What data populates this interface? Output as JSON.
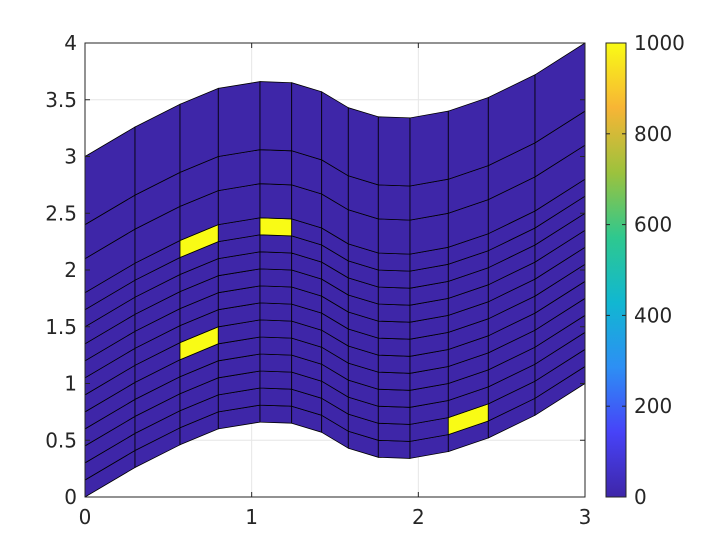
{
  "chart_data": {
    "type": "heatmap",
    "title": "",
    "xlabel": "",
    "ylabel": "",
    "xlim": [
      0,
      3
    ],
    "ylim": [
      0,
      4
    ],
    "grid": true,
    "x_ticks": [
      "0",
      "1",
      "2",
      "3"
    ],
    "y_ticks": [
      "0",
      "0.5",
      "1",
      "1.5",
      "2",
      "2.5",
      "3",
      "3.5",
      "4"
    ],
    "mesh": {
      "x": [
        0,
        0.3,
        0.57,
        0.8,
        1.05,
        1.24,
        1.42,
        1.58,
        1.76,
        1.95,
        2.18,
        2.42,
        2.7,
        3.0
      ],
      "bottom": [
        0,
        0.26,
        0.46,
        0.6,
        0.66,
        0.65,
        0.57,
        0.43,
        0.35,
        0.34,
        0.4,
        0.52,
        0.72,
        1.0
      ],
      "top": [
        3.0,
        3.26,
        3.46,
        3.6,
        3.66,
        3.65,
        3.57,
        3.43,
        3.35,
        3.34,
        3.4,
        3.52,
        3.72,
        4.0
      ],
      "row_fractions": [
        0,
        0.05,
        0.1,
        0.15,
        0.2,
        0.25,
        0.3,
        0.35,
        0.4,
        0.45,
        0.5,
        0.55,
        0.6,
        0.7,
        0.8,
        1.0
      ],
      "default_value": 0,
      "cells": [
        {
          "col": 2,
          "row": 5,
          "value": 1000
        },
        {
          "col": 2,
          "row": 11,
          "value": 1000
        },
        {
          "col": 4,
          "row": 11,
          "value": 1000
        },
        {
          "col": 10,
          "row": 1,
          "value": 1000
        }
      ]
    },
    "colorbar": {
      "range": [
        0,
        1000
      ],
      "ticks": [
        "0",
        "200",
        "400",
        "600",
        "800",
        "1000"
      ],
      "colormap": "parula",
      "stops": [
        "#3e26a8",
        "#4743f8",
        "#2d8ff4",
        "#11b7d1",
        "#2ec88f",
        "#9cc23d",
        "#f7b535",
        "#f9fb15"
      ]
    }
  }
}
